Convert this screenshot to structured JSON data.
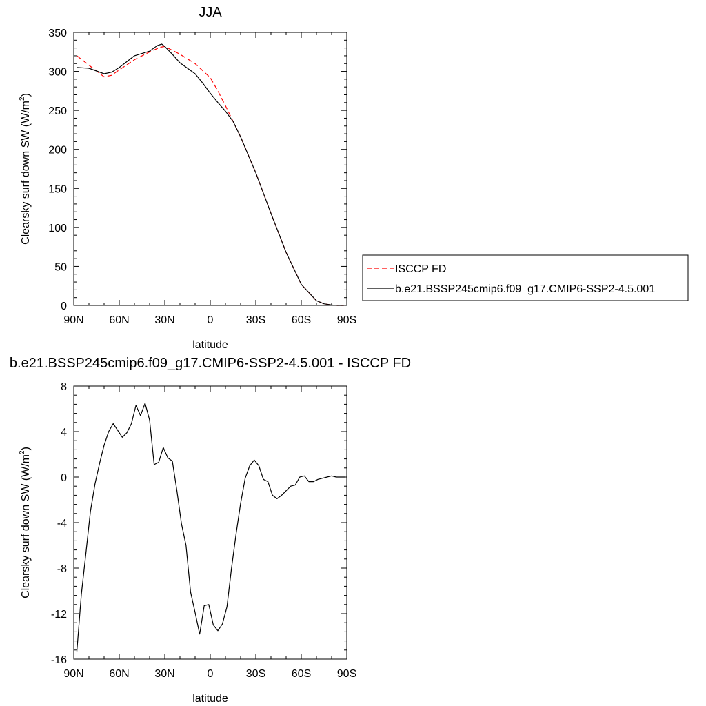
{
  "chart_data": [
    {
      "type": "line",
      "title": "JJA",
      "xlabel": "latitude",
      "ylabel": "Clearsky surf down SW (W/m",
      "ylabel_sup": "2",
      "ylabel_close": ")",
      "xlim": [
        90,
        -90
      ],
      "ylim": [
        0,
        350
      ],
      "xticks": [
        {
          "value": 90,
          "label": "90N"
        },
        {
          "value": 60,
          "label": "60N"
        },
        {
          "value": 30,
          "label": "30N"
        },
        {
          "value": 0,
          "label": "0"
        },
        {
          "value": -30,
          "label": "30S"
        },
        {
          "value": -60,
          "label": "60S"
        },
        {
          "value": -90,
          "label": "90S"
        }
      ],
      "yticks": [
        {
          "value": 0,
          "label": "0"
        },
        {
          "value": 50,
          "label": "50"
        },
        {
          "value": 100,
          "label": "100"
        },
        {
          "value": 150,
          "label": "150"
        },
        {
          "value": 200,
          "label": "200"
        },
        {
          "value": 250,
          "label": "250"
        },
        {
          "value": 300,
          "label": "300"
        },
        {
          "value": 350,
          "label": "350"
        }
      ],
      "legend": {
        "placement": "right"
      },
      "series": [
        {
          "name": "ISCCP FD",
          "color": "#ff0000",
          "dash": "dashed",
          "x": [
            88,
            80,
            70,
            65,
            60,
            50,
            40,
            33,
            30,
            25,
            20,
            10,
            0,
            -5,
            -10,
            -15,
            -20,
            -30,
            -40,
            -50,
            -60,
            -70,
            -75,
            -80,
            -82,
            -84,
            -86,
            -88
          ],
          "y": [
            320,
            308,
            293,
            295,
            302,
            315,
            325,
            331,
            332,
            327,
            322,
            310,
            292,
            275,
            256,
            236,
            216,
            170,
            118,
            68,
            27,
            6,
            2,
            0.5,
            0.2,
            0,
            0,
            0
          ]
        },
        {
          "name": "b.e21.BSSP245cmip6.f09_g17.CMIP6-SSP2-4.5.001",
          "color": "#000000",
          "dash": "solid",
          "x": [
            88,
            80,
            70,
            65,
            60,
            50,
            40,
            35,
            32,
            30,
            25,
            20,
            10,
            5,
            0,
            -5,
            -10,
            -15,
            -20,
            -30,
            -40,
            -50,
            -60,
            -70,
            -75,
            -80,
            -82,
            -84,
            -86,
            -88
          ],
          "y": [
            305,
            304,
            297,
            299,
            305,
            320,
            326,
            333,
            335,
            332,
            322,
            311,
            297,
            285,
            272,
            260,
            249,
            236,
            216,
            170,
            118,
            68,
            27,
            6,
            2,
            0.5,
            0.2,
            0,
            0,
            0
          ]
        }
      ]
    },
    {
      "type": "line",
      "title": "b.e21.BSSP245cmip6.f09_g17.CMIP6-SSP2-4.5.001 - ISCCP FD",
      "xlabel": "latitude",
      "ylabel": "Clearsky surf down SW (W/m",
      "ylabel_sup": "2",
      "ylabel_close": ")",
      "xlim": [
        90,
        -90
      ],
      "ylim": [
        -16,
        8
      ],
      "xticks": [
        {
          "value": 90,
          "label": "90N"
        },
        {
          "value": 60,
          "label": "60N"
        },
        {
          "value": 30,
          "label": "30N"
        },
        {
          "value": 0,
          "label": "0"
        },
        {
          "value": -30,
          "label": "30S"
        },
        {
          "value": -60,
          "label": "60S"
        },
        {
          "value": -90,
          "label": "90S"
        }
      ],
      "yticks": [
        {
          "value": -16,
          "label": "-16"
        },
        {
          "value": -12,
          "label": "-12"
        },
        {
          "value": -8,
          "label": "-8"
        },
        {
          "value": -4,
          "label": "-4"
        },
        {
          "value": 0,
          "label": "0"
        },
        {
          "value": 4,
          "label": "4"
        },
        {
          "value": 8,
          "label": "8"
        }
      ],
      "series": [
        {
          "name": "",
          "color": "#000000",
          "dash": "solid",
          "x": [
            88,
            85,
            82,
            79,
            76,
            73,
            70,
            67,
            64,
            61,
            58,
            55,
            52,
            49,
            46,
            43,
            40,
            37,
            34,
            31,
            28,
            25,
            22,
            19,
            16,
            13,
            10,
            7,
            4,
            1,
            -2,
            -5,
            -8,
            -11,
            -14,
            -17,
            -20,
            -23,
            -26,
            -29,
            -32,
            -35,
            -38,
            -41,
            -44,
            -47,
            -50,
            -53,
            -56,
            -59,
            -62,
            -65,
            -68,
            -71,
            -74,
            -77,
            -80,
            -83,
            -86,
            -89
          ],
          "y": [
            -15.4,
            -10.3,
            -6.7,
            -3.0,
            -0.6,
            1.2,
            2.8,
            4.0,
            4.7,
            4.1,
            3.5,
            3.9,
            4.7,
            6.3,
            5.4,
            6.5,
            5.0,
            1.1,
            1.3,
            2.6,
            1.7,
            1.4,
            -1.2,
            -4.1,
            -6.0,
            -10.1,
            -11.9,
            -13.8,
            -11.3,
            -11.2,
            -13.0,
            -13.5,
            -12.9,
            -11.4,
            -8.0,
            -5.0,
            -2.3,
            -0.1,
            1.0,
            1.5,
            1.0,
            -0.2,
            -0.4,
            -1.6,
            -1.9,
            -1.6,
            -1.2,
            -0.8,
            -0.7,
            0.0,
            0.1,
            -0.4,
            -0.4,
            -0.2,
            -0.1,
            0.0,
            0.1,
            0.0,
            0.0,
            0.0
          ]
        }
      ]
    }
  ]
}
